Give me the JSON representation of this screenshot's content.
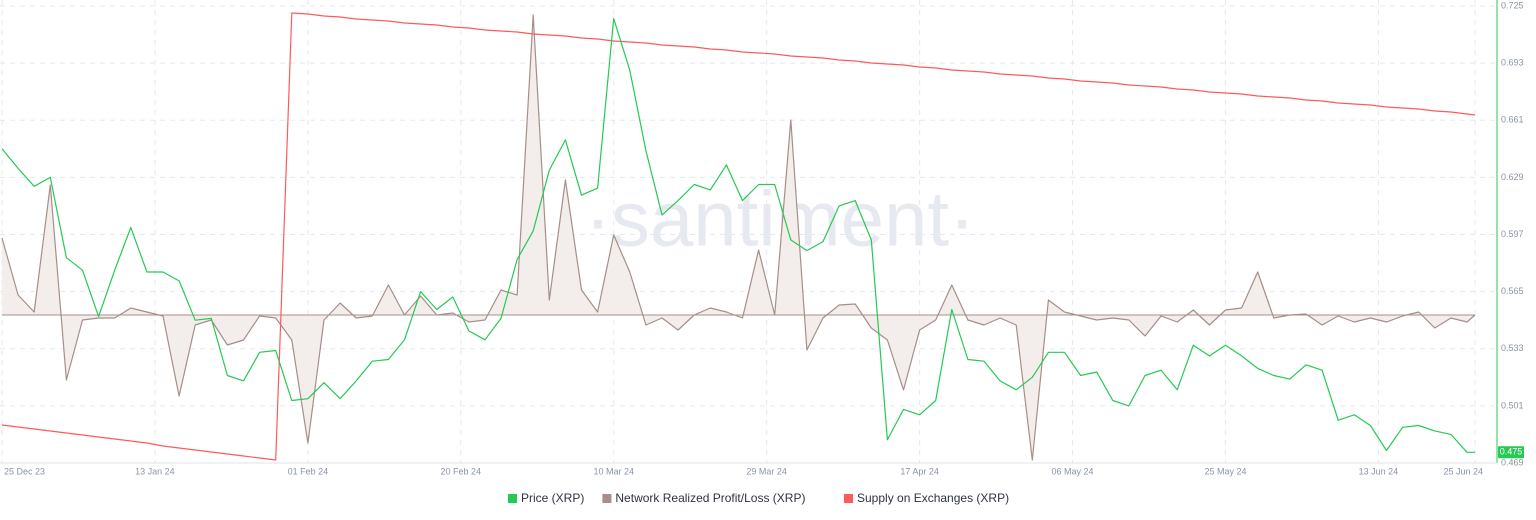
{
  "chart_data": {
    "type": "line",
    "watermark": "·santiment·",
    "x": [
      "25 Dec 23",
      "27 Dec 23",
      "29 Dec 23",
      "31 Dec 23",
      "02 Jan 24",
      "04 Jan 24",
      "06 Jan 24",
      "08 Jan 24",
      "10 Jan 24",
      "12 Jan 24",
      "14 Jan 24",
      "16 Jan 24",
      "18 Jan 24",
      "20 Jan 24",
      "22 Jan 24",
      "24 Jan 24",
      "26 Jan 24",
      "28 Jan 24",
      "30 Jan 24",
      "01 Feb 24",
      "03 Feb 24",
      "05 Feb 24",
      "07 Feb 24",
      "09 Feb 24",
      "11 Feb 24",
      "13 Feb 24",
      "15 Feb 24",
      "17 Feb 24",
      "19 Feb 24",
      "21 Feb 24",
      "23 Feb 24",
      "25 Feb 24",
      "27 Feb 24",
      "29 Feb 24",
      "02 Mar 24",
      "04 Mar 24",
      "06 Mar 24",
      "08 Mar 24",
      "10 Mar 24",
      "12 Mar 24",
      "14 Mar 24",
      "16 Mar 24",
      "18 Mar 24",
      "20 Mar 24",
      "22 Mar 24",
      "24 Mar 24",
      "26 Mar 24",
      "28 Mar 24",
      "30 Mar 24",
      "01 Apr 24",
      "03 Apr 24",
      "05 Apr 24",
      "07 Apr 24",
      "09 Apr 24",
      "11 Apr 24",
      "13 Apr 24",
      "15 Apr 24",
      "17 Apr 24",
      "19 Apr 24",
      "21 Apr 24",
      "23 Apr 24",
      "25 Apr 24",
      "27 Apr 24",
      "29 Apr 24",
      "01 May 24",
      "03 May 24",
      "05 May 24",
      "07 May 24",
      "09 May 24",
      "11 May 24",
      "13 May 24",
      "15 May 24",
      "17 May 24",
      "19 May 24",
      "21 May 24",
      "23 May 24",
      "25 May 24",
      "27 May 24",
      "29 May 24",
      "31 May 24",
      "02 Jun 24",
      "04 Jun 24",
      "06 Jun 24",
      "08 Jun 24",
      "10 Jun 24",
      "12 Jun 24",
      "14 Jun 24",
      "16 Jun 24",
      "18 Jun 24",
      "20 Jun 24",
      "22 Jun 24",
      "24 Jun 24",
      "25 Jun 24"
    ],
    "xticks": [
      "25 Dec 23",
      "13 Jan 24",
      "01 Feb 24",
      "20 Feb 24",
      "10 Mar 24",
      "29 Mar 24",
      "17 Apr 24",
      "06 May 24",
      "25 May 24",
      "13 Jun 24",
      "25 Jun 24"
    ],
    "ylim": [
      0.469,
      0.725
    ],
    "yticks": [
      0.469,
      0.501,
      0.533,
      0.565,
      0.597,
      0.629,
      0.661,
      0.693,
      0.725
    ],
    "grid": true,
    "legend": "bottom",
    "series": [
      {
        "name": "Price (XRP)",
        "color": "#26c953",
        "values": [
          0.645,
          0.634,
          0.624,
          0.629,
          0.584,
          0.577,
          0.551,
          0.577,
          0.601,
          0.576,
          0.576,
          0.571,
          0.549,
          0.55,
          0.518,
          0.515,
          0.531,
          0.532,
          0.504,
          0.505,
          0.514,
          0.505,
          0.515,
          0.526,
          0.527,
          0.538,
          0.565,
          0.555,
          0.562,
          0.543,
          0.538,
          0.55,
          0.583,
          0.599,
          0.633,
          0.65,
          0.619,
          0.623,
          0.718,
          0.689,
          0.644,
          0.608,
          0.616,
          0.625,
          0.622,
          0.636,
          0.616,
          0.625,
          0.625,
          0.594,
          0.588,
          0.593,
          0.613,
          0.616,
          0.594,
          0.482,
          0.499,
          0.496,
          0.504,
          0.555,
          0.527,
          0.526,
          0.515,
          0.51,
          0.517,
          0.531,
          0.531,
          0.518,
          0.52,
          0.504,
          0.501,
          0.518,
          0.521,
          0.51,
          0.535,
          0.529,
          0.535,
          0.529,
          0.522,
          0.518,
          0.516,
          0.524,
          0.521,
          0.493,
          0.496,
          0.49,
          0.476,
          0.489,
          0.49,
          0.487,
          0.485,
          0.475,
          0.475
        ]
      },
      {
        "name": "Network Realized Profit/Loss (XRP)",
        "color": "#a58f88",
        "fill": "#f3edeb",
        "ylim": [
          -148,
          309
        ],
        "values": [
          77,
          20,
          3,
          130,
          -65,
          -5,
          -3,
          -3,
          7,
          3,
          -1,
          -81,
          -10,
          -5,
          -30,
          -25,
          -1,
          -3,
          -25,
          -128,
          -5,
          12,
          -3,
          -1,
          30,
          0,
          19,
          0,
          2,
          -7,
          -5,
          25,
          20,
          300,
          15,
          135,
          25,
          3,
          80,
          43,
          -10,
          -3,
          -15,
          0,
          7,
          3,
          -3,
          65,
          0,
          195,
          -35,
          -3,
          10,
          11,
          -13,
          -25,
          -75,
          -15,
          -5,
          30,
          -5,
          -10,
          -3,
          -10,
          -145,
          15,
          3,
          -1,
          -5,
          -3,
          -5,
          -21,
          -1,
          -7,
          5,
          -10,
          5,
          7,
          43,
          -3,
          0,
          1,
          -10,
          -1,
          -7,
          -3,
          -7,
          -1,
          3,
          -13,
          -3,
          -7,
          0
        ]
      },
      {
        "name": "Supply on Exchanges (XRP)",
        "color": "#ff5a5a",
        "ylim": [
          0,
          457
        ],
        "values": [
          38,
          36,
          34,
          32,
          30,
          28,
          26,
          24,
          22,
          20,
          17,
          15,
          13,
          11,
          9,
          7,
          5,
          3,
          450,
          449,
          447,
          446,
          444,
          443,
          442,
          440,
          439,
          438,
          436,
          435,
          433,
          432,
          431,
          429,
          428,
          427,
          425,
          424,
          422,
          421,
          420,
          418,
          417,
          416,
          414,
          413,
          411,
          410,
          409,
          407,
          406,
          405,
          403,
          402,
          400,
          399,
          398,
          396,
          395,
          393,
          392,
          391,
          389,
          388,
          387,
          385,
          384,
          382,
          381,
          380,
          378,
          377,
          376,
          374,
          373,
          371,
          370,
          369,
          367,
          366,
          365,
          363,
          362,
          360,
          359,
          358,
          356,
          355,
          354,
          352,
          351,
          349,
          348
        ]
      }
    ]
  }
}
